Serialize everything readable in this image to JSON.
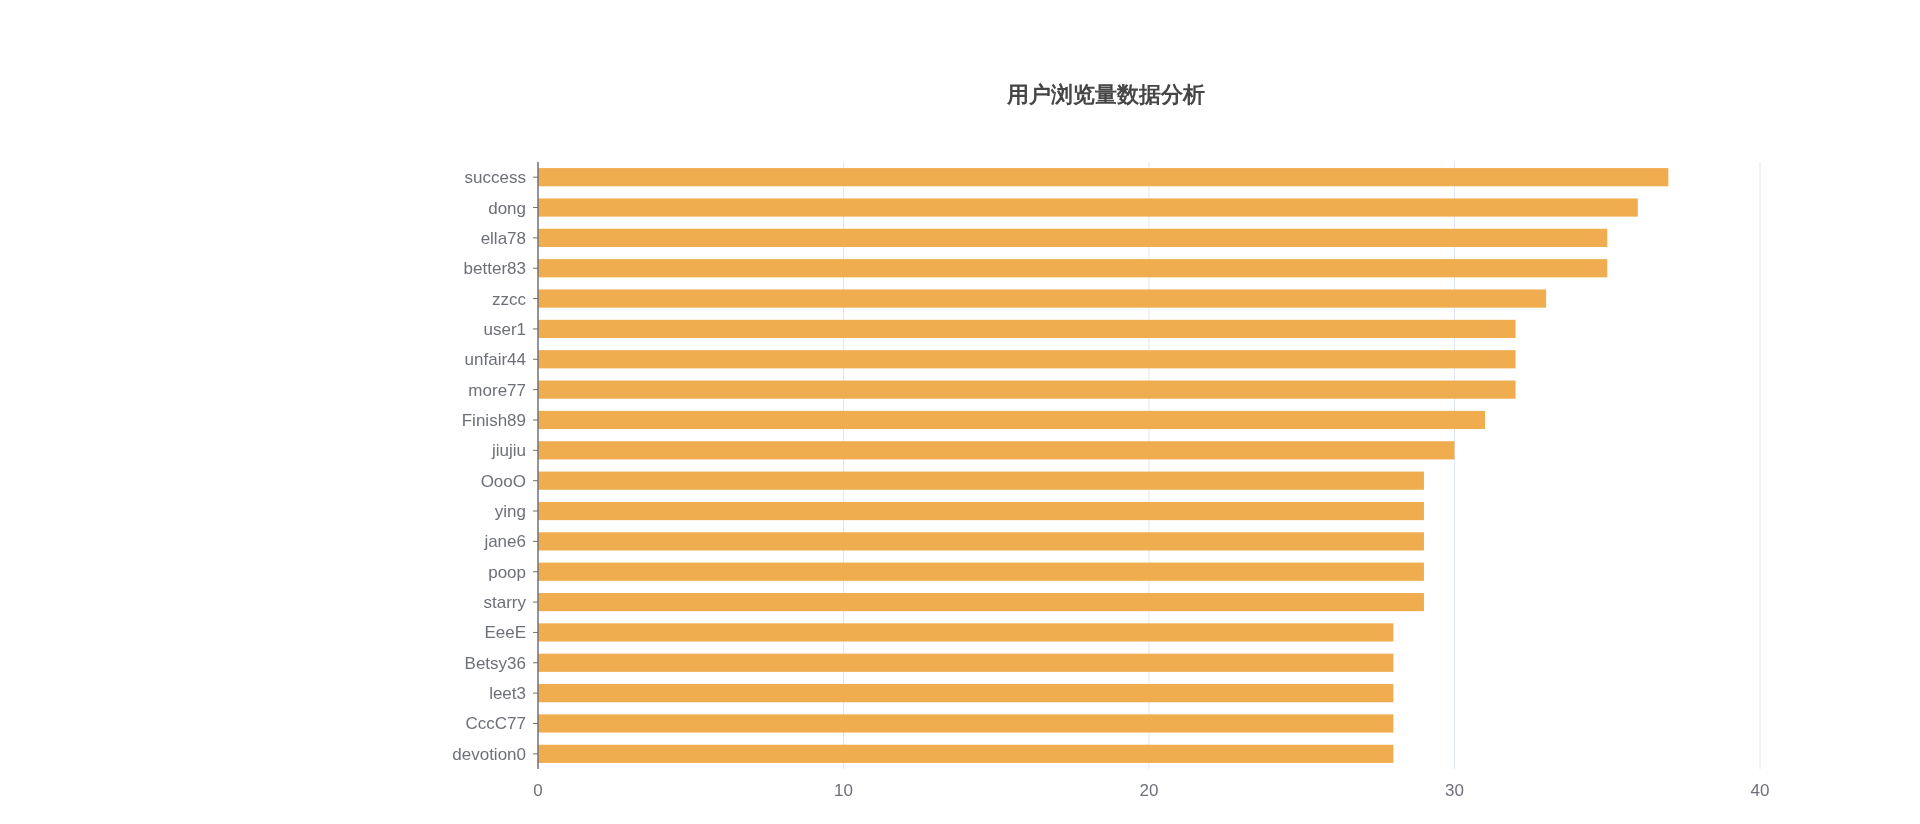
{
  "chart_data": {
    "type": "bar",
    "orientation": "horizontal",
    "title": "用户浏览量数据分析",
    "categories": [
      "success",
      "dong",
      "ella78",
      "better83",
      "zzcc",
      "user1",
      "unfair44",
      "more77",
      "Finish89",
      "jiujiu",
      "OooO",
      "ying",
      "jane6",
      "poop",
      "starry",
      "EeeE",
      "Betsy36",
      "leet3",
      "CccC77",
      "devotion0"
    ],
    "values": [
      37,
      36,
      35,
      35,
      33,
      32,
      32,
      32,
      31,
      30,
      29,
      29,
      29,
      29,
      29,
      28,
      28,
      28,
      28,
      28
    ],
    "color": "#f0ad50",
    "xlim": [
      0,
      40
    ],
    "xticks": [
      0,
      10,
      20,
      30,
      40
    ],
    "grid": "x"
  }
}
